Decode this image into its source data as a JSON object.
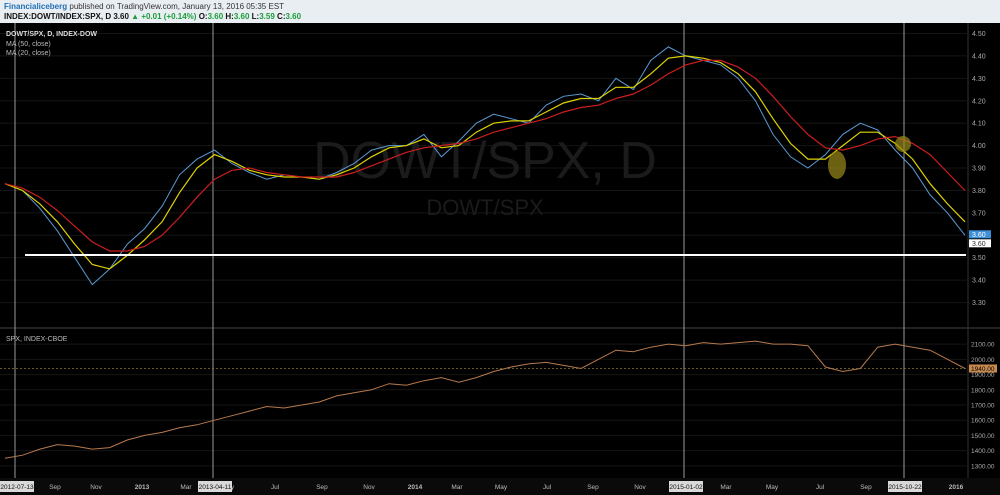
{
  "header": {
    "author": "Financialiceberg",
    "published": "published on TradingView.com, January 13, 2016 05:35 EST",
    "symbol": "INDEX:DOWT/INDEX:SPX, D",
    "last": "3.60",
    "change": "▲ +0.01 (+0.14%)",
    "o_label": "O:",
    "o_value": "3.60",
    "h_label": "H:",
    "h_value": "3.60",
    "l_label": "L:",
    "l_value": "3.59",
    "c_label": "C:",
    "c_value": "3.60"
  },
  "legend": {
    "title": "DOWT/SPX, D, INDEX-DOW",
    "ma50": "MA (50, close)",
    "ma20": "MA (20, close)"
  },
  "watermark": {
    "main": "DOWT/SPX, D",
    "sub": "DOWT/SPX"
  },
  "lower_legend": "SPX, INDEX-CBOE",
  "colors": {
    "price": "#5b9bd5",
    "ma20": "#e0d400",
    "ma50": "#cc1e1e",
    "spx": "#b77a4f",
    "support": "#ffffff"
  },
  "chart_data": [
    {
      "type": "line",
      "title": "DOWT/SPX, D, INDEX-DOW",
      "x_labels": [
        "Sep",
        "Nov",
        "2013",
        "Mar",
        "May",
        "Jul",
        "Sep",
        "Nov",
        "2014",
        "Mar",
        "May",
        "Jul",
        "Sep",
        "Nov",
        "Mar",
        "May",
        "Jul",
        "Sep",
        "2016"
      ],
      "x_marker_labels": [
        "2012-07-13",
        "2013-04-11",
        "2015-01-02",
        "2015-10-22"
      ],
      "ylim": [
        3.2,
        4.52
      ],
      "y_ticks": [
        "4.50",
        "4.40",
        "4.30",
        "4.20",
        "4.10",
        "4.00",
        "3.90",
        "3.80",
        "3.70",
        "3.60",
        "3.50",
        "3.40",
        "3.30"
      ],
      "last_price_label": "3.60",
      "support_label": "3.60",
      "support_level": 3.6,
      "series": [
        {
          "name": "DOWT/SPX",
          "values": [
            3.83,
            3.8,
            3.72,
            3.62,
            3.5,
            3.38,
            3.45,
            3.56,
            3.63,
            3.73,
            3.87,
            3.94,
            3.98,
            3.92,
            3.88,
            3.85,
            3.87,
            3.86,
            3.85,
            3.88,
            3.92,
            3.98,
            4.0,
            4.0,
            4.05,
            3.95,
            4.02,
            4.1,
            4.14,
            4.12,
            4.1,
            4.18,
            4.22,
            4.23,
            4.2,
            4.3,
            4.25,
            4.38,
            4.44,
            4.4,
            4.38,
            4.36,
            4.3,
            4.2,
            4.05,
            3.95,
            3.9,
            3.96,
            4.05,
            4.1,
            4.07,
            3.98,
            3.9,
            3.78,
            3.7,
            3.6
          ]
        },
        {
          "name": "MA (20, close)",
          "values": [
            3.83,
            3.8,
            3.74,
            3.66,
            3.56,
            3.47,
            3.45,
            3.51,
            3.58,
            3.66,
            3.79,
            3.9,
            3.96,
            3.93,
            3.89,
            3.87,
            3.86,
            3.86,
            3.85,
            3.87,
            3.9,
            3.95,
            3.99,
            4.0,
            4.03,
            3.99,
            4.0,
            4.06,
            4.1,
            4.11,
            4.11,
            4.15,
            4.19,
            4.21,
            4.21,
            4.26,
            4.26,
            4.32,
            4.39,
            4.4,
            4.39,
            4.37,
            4.32,
            4.24,
            4.12,
            4.01,
            3.94,
            3.94,
            4.0,
            4.06,
            4.06,
            4.01,
            3.94,
            3.83,
            3.74,
            3.66
          ]
        },
        {
          "name": "MA (50, close)",
          "values": [
            3.83,
            3.81,
            3.77,
            3.71,
            3.64,
            3.57,
            3.53,
            3.53,
            3.55,
            3.6,
            3.68,
            3.77,
            3.85,
            3.89,
            3.9,
            3.88,
            3.87,
            3.86,
            3.86,
            3.86,
            3.88,
            3.91,
            3.94,
            3.97,
            3.99,
            4.0,
            4.01,
            4.03,
            4.06,
            4.08,
            4.1,
            4.12,
            4.15,
            4.17,
            4.18,
            4.21,
            4.23,
            4.27,
            4.32,
            4.36,
            4.38,
            4.38,
            4.35,
            4.3,
            4.22,
            4.13,
            4.05,
            3.99,
            3.98,
            4.0,
            4.03,
            4.04,
            4.01,
            3.96,
            3.88,
            3.8
          ]
        }
      ]
    },
    {
      "type": "line",
      "title": "SPX, INDEX-CBOE",
      "ylim": [
        1240,
        2160
      ],
      "y_ticks": [
        "2100.00",
        "2000.00",
        "1900.00",
        "1800.00",
        "1700.00",
        "1600.00",
        "1500.00",
        "1400.00",
        "1300.00"
      ],
      "last_price_label": "1940.00",
      "series": [
        {
          "name": "SPX, INDEX-CBOE",
          "values": [
            1350,
            1370,
            1410,
            1440,
            1430,
            1410,
            1420,
            1470,
            1500,
            1520,
            1550,
            1570,
            1600,
            1630,
            1660,
            1690,
            1680,
            1700,
            1720,
            1760,
            1780,
            1800,
            1840,
            1830,
            1860,
            1880,
            1850,
            1880,
            1920,
            1950,
            1970,
            1980,
            1960,
            1940,
            2000,
            2060,
            2050,
            2080,
            2100,
            2090,
            2110,
            2100,
            2110,
            2120,
            2100,
            2100,
            2090,
            1950,
            1920,
            1940,
            2080,
            2100,
            2080,
            2060,
            2000,
            1940
          ]
        }
      ]
    }
  ]
}
